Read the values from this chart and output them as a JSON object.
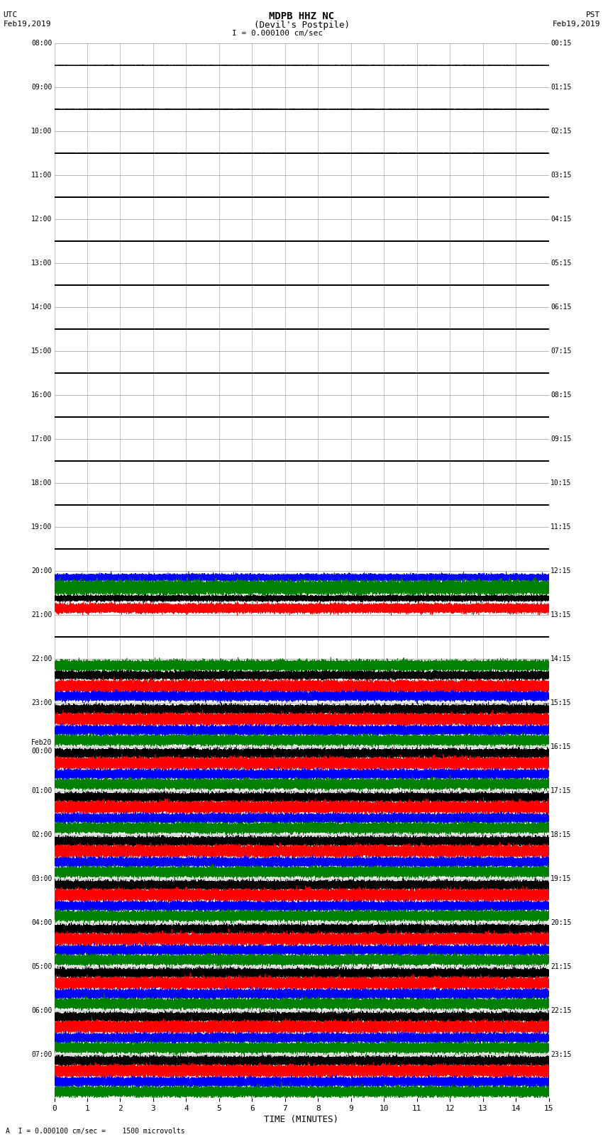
{
  "title_line1": "MDPB HHZ NC",
  "title_line2": "(Devil's Postpile)",
  "title_line3": "I = 0.000100 cm/sec",
  "left_label_top": "UTC",
  "left_label_date": "Feb19,2019",
  "right_label_top": "PST",
  "right_label_date": "Feb19,2019",
  "xlabel": "TIME (MINUTES)",
  "footer": "A  I = 0.000100 cm/sec =    1500 microvolts",
  "utc_times": [
    "08:00",
    "09:00",
    "10:00",
    "11:00",
    "12:00",
    "13:00",
    "14:00",
    "15:00",
    "16:00",
    "17:00",
    "18:00",
    "19:00",
    "20:00",
    "21:00",
    "22:00",
    "23:00",
    "Feb20\n00:00",
    "01:00",
    "02:00",
    "03:00",
    "04:00",
    "05:00",
    "06:00",
    "07:00"
  ],
  "pst_times": [
    "00:15",
    "01:15",
    "02:15",
    "03:15",
    "04:15",
    "05:15",
    "06:15",
    "07:15",
    "08:15",
    "09:15",
    "10:15",
    "11:15",
    "12:15",
    "13:15",
    "14:15",
    "15:15",
    "16:15",
    "17:15",
    "18:15",
    "19:15",
    "20:15",
    "21:15",
    "22:15",
    "23:15"
  ],
  "num_rows": 24,
  "minutes": 15,
  "background_color": "#ffffff",
  "grid_color": "#999999",
  "fig_width": 8.5,
  "fig_height": 16.13,
  "row_data": [
    {
      "colors": [
        "#000000"
      ],
      "amps": [
        0.003
      ]
    },
    {
      "colors": [
        "#000000"
      ],
      "amps": [
        0.003
      ]
    },
    {
      "colors": [
        "#000000"
      ],
      "amps": [
        0.003
      ]
    },
    {
      "colors": [
        "#000000"
      ],
      "amps": [
        0.003
      ]
    },
    {
      "colors": [
        "#000000"
      ],
      "amps": [
        0.003
      ]
    },
    {
      "colors": [
        "#000000"
      ],
      "amps": [
        0.003
      ]
    },
    {
      "colors": [
        "#000000"
      ],
      "amps": [
        0.003
      ]
    },
    {
      "colors": [
        "#000000"
      ],
      "amps": [
        0.003
      ]
    },
    {
      "colors": [
        "#000000"
      ],
      "amps": [
        0.003
      ]
    },
    {
      "colors": [
        "#000000"
      ],
      "amps": [
        0.003
      ]
    },
    {
      "colors": [
        "#000000"
      ],
      "amps": [
        0.003
      ]
    },
    {
      "colors": [
        "#000000"
      ],
      "amps": [
        0.003
      ]
    },
    {
      "colors": [
        "#0000ff",
        "#008000",
        "#000000",
        "#ff0000"
      ],
      "amps": [
        0.06,
        0.12,
        0.05,
        0.08
      ]
    },
    {
      "colors": [
        "#000000"
      ],
      "amps": [
        0.005
      ]
    },
    {
      "colors": [
        "#008000",
        "#000000",
        "#ff0000",
        "#0000ff"
      ],
      "amps": [
        0.09,
        0.07,
        0.1,
        0.08
      ]
    },
    {
      "colors": [
        "#000000",
        "#ff0000",
        "#0000ff",
        "#008000"
      ],
      "amps": [
        0.08,
        0.1,
        0.08,
        0.09
      ]
    },
    {
      "colors": [
        "#000000",
        "#ff0000",
        "#0000ff",
        "#008000"
      ],
      "amps": [
        0.08,
        0.1,
        0.08,
        0.09
      ]
    },
    {
      "colors": [
        "#000000",
        "#ff0000",
        "#0000ff",
        "#008000"
      ],
      "amps": [
        0.08,
        0.1,
        0.08,
        0.09
      ]
    },
    {
      "colors": [
        "#000000",
        "#ff0000",
        "#0000ff",
        "#008000"
      ],
      "amps": [
        0.08,
        0.1,
        0.08,
        0.09
      ]
    },
    {
      "colors": [
        "#000000",
        "#ff0000",
        "#0000ff",
        "#008000"
      ],
      "amps": [
        0.08,
        0.1,
        0.08,
        0.09
      ]
    },
    {
      "colors": [
        "#000000",
        "#ff0000",
        "#0000ff",
        "#008000"
      ],
      "amps": [
        0.08,
        0.1,
        0.08,
        0.09
      ]
    },
    {
      "colors": [
        "#000000",
        "#ff0000",
        "#0000ff",
        "#008000"
      ],
      "amps": [
        0.08,
        0.1,
        0.08,
        0.09
      ]
    },
    {
      "colors": [
        "#000000",
        "#ff0000",
        "#0000ff",
        "#008000"
      ],
      "amps": [
        0.08,
        0.1,
        0.08,
        0.09
      ]
    },
    {
      "colors": [
        "#000000",
        "#ff0000",
        "#0000ff",
        "#008000"
      ],
      "amps": [
        0.08,
        0.1,
        0.08,
        0.09
      ]
    }
  ]
}
